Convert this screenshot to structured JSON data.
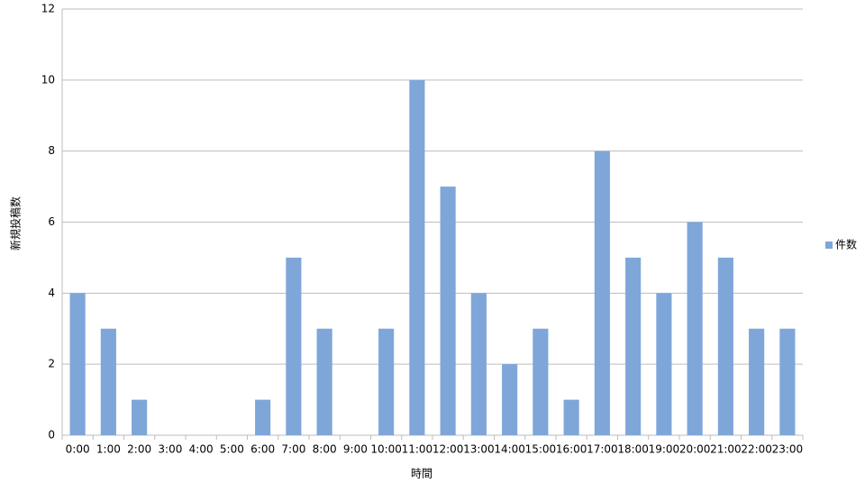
{
  "chart_data": {
    "type": "bar",
    "x_label": "時間",
    "y_label": "新規投稿数",
    "categories": [
      "0:00",
      "1:00",
      "2:00",
      "3:00",
      "4:00",
      "5:00",
      "6:00",
      "7:00",
      "8:00",
      "9:00",
      "10:00",
      "11:00",
      "12:00",
      "13:00",
      "14:00",
      "15:00",
      "16:00",
      "17:00",
      "18:00",
      "19:00",
      "20:00",
      "21:00",
      "22:00",
      "23:00"
    ],
    "series": [
      {
        "name": "件数",
        "color": "#7ea6d9",
        "values": [
          4,
          3,
          1,
          0,
          0,
          0,
          1,
          5,
          3,
          0,
          3,
          10,
          7,
          4,
          2,
          3,
          1,
          8,
          5,
          4,
          6,
          5,
          3,
          3
        ]
      }
    ],
    "ylim": [
      0,
      12
    ],
    "yticks": [
      0,
      2,
      4,
      6,
      8,
      10,
      12
    ],
    "grid": true,
    "legend": "right"
  }
}
